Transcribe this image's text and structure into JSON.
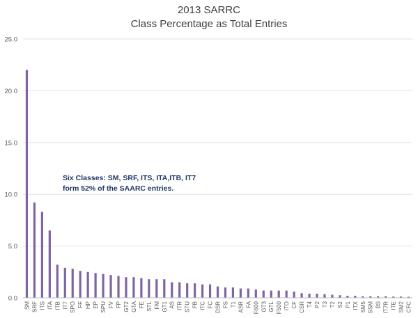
{
  "chart_data": {
    "type": "bar",
    "title": "2013 SARRC",
    "subtitle": "Class Percentage as Total Entries",
    "xlabel": "",
    "ylabel": "",
    "ylim": [
      0,
      25
    ],
    "yticks": [
      "0.0",
      "5.0",
      "10.0",
      "15.0",
      "20.0",
      "25.0"
    ],
    "grid": true,
    "legend": "none",
    "bar_color": "#8064a2",
    "annotation": [
      "Six Classes: SM, SRF, ITS, ITA,ITB, IT7",
      "form 52% of the SAARC entries."
    ],
    "categories": [
      "SM",
      "SRF",
      "ITS",
      "ITA",
      "ITB",
      "IT7",
      "SPO",
      "FF",
      "HP",
      "EP",
      "SPU",
      "FV",
      "FP",
      "GT2",
      "GTA",
      "FE",
      "STL",
      "FM",
      "GT1",
      "AS",
      "ITR",
      "STU",
      "FB",
      "ITC",
      "FC",
      "DSR",
      "FS",
      "T1",
      "ASR",
      "FA",
      "F600",
      "GT3",
      "GTL",
      "F500",
      "ITO",
      "CF",
      "CSR",
      "T4",
      "P2",
      "T3",
      "T2",
      "S2",
      "P1",
      "ITX",
      "SM5",
      "SSM",
      "BS",
      "IT7R",
      "ITE",
      "SM2",
      "CFC"
    ],
    "values": [
      22.0,
      9.2,
      8.3,
      6.5,
      3.2,
      2.9,
      2.8,
      2.6,
      2.5,
      2.4,
      2.3,
      2.2,
      2.1,
      2.0,
      2.0,
      1.9,
      1.8,
      1.8,
      1.8,
      1.5,
      1.5,
      1.4,
      1.4,
      1.3,
      1.3,
      1.1,
      1.0,
      1.0,
      0.9,
      0.9,
      0.8,
      0.7,
      0.7,
      0.7,
      0.7,
      0.6,
      0.45,
      0.4,
      0.4,
      0.35,
      0.3,
      0.25,
      0.2,
      0.2,
      0.15,
      0.15,
      0.15,
      0.15,
      0.12,
      0.12,
      0.1
    ]
  }
}
